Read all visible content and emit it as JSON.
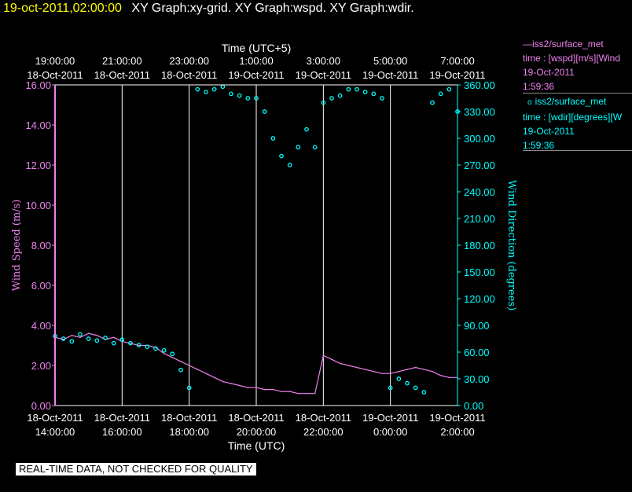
{
  "header": {
    "timestamp": "19-oct-2011,02:00:00",
    "graphs": "XY Graph:xy-grid.  XY Graph:wspd.  XY Graph:wdir."
  },
  "legend": [
    {
      "marker": "line",
      "title": "iss2/surface_met",
      "line2": "time : [wspd][m/s][Wind",
      "line3": "19-Oct-2011",
      "line4": "1:59:36",
      "color": "#ee82ee"
    },
    {
      "marker": "circle",
      "title": "iss2/surface_met",
      "line2": "time : [wdir][degrees][W",
      "line3": "19-Oct-2011",
      "line4": "1:59:36",
      "color": "#00ffff"
    }
  ],
  "notice": "REAL-TIME DATA, NOT CHECKED FOR QUALITY",
  "chart_data": {
    "type": "scatter",
    "top_axis": {
      "label": "Time (UTC+5)",
      "ticks": [
        {
          "time": "19:00:00",
          "date": "18-Oct-2011"
        },
        {
          "time": "21:00:00",
          "date": "18-Oct-2011"
        },
        {
          "time": "23:00:00",
          "date": "18-Oct-2011"
        },
        {
          "time": "1:00:00",
          "date": "19-Oct-2011"
        },
        {
          "time": "3:00:00",
          "date": "19-Oct-2011"
        },
        {
          "time": "5:00:00",
          "date": "19-Oct-2011"
        },
        {
          "time": "7:00:00",
          "date": "19-Oct-2011"
        }
      ]
    },
    "bottom_axis": {
      "label": "Time (UTC)",
      "ticks": [
        {
          "time": "14:00:00",
          "date": "18-Oct-2011"
        },
        {
          "time": "16:00:00",
          "date": "18-Oct-2011"
        },
        {
          "time": "18:00:00",
          "date": "18-Oct-2011"
        },
        {
          "time": "20:00:00",
          "date": "18-Oct-2011"
        },
        {
          "time": "22:00:00",
          "date": "18-Oct-2011"
        },
        {
          "time": "0:00:00",
          "date": "19-Oct-2011"
        },
        {
          "time": "2:00:00",
          "date": "19-Oct-2011"
        }
      ]
    },
    "xlim": [
      "2011-10-18 14:00",
      "2011-10-19 02:00"
    ],
    "left_axis": {
      "label": "Wind Speed (m/s)",
      "ylim": [
        0,
        16
      ],
      "ticks": [
        "0.00",
        "2.00",
        "4.00",
        "6.00",
        "8.00",
        "10.00",
        "12.00",
        "14.00",
        "16.00"
      ],
      "color": "#ee82ee"
    },
    "right_axis": {
      "label": "Wind Direction (degrees)",
      "ylim": [
        0,
        360
      ],
      "ticks": [
        "0.00",
        "30.00",
        "60.00",
        "90.00",
        "120.00",
        "150.00",
        "180.00",
        "210.00",
        "240.00",
        "270.00",
        "300.00",
        "330.00",
        "360.00"
      ],
      "color": "#00ffff"
    },
    "grid": "vertical",
    "series": [
      {
        "type": "line",
        "color": "#ee82ee",
        "x_hours_utc": [
          14.0,
          14.25,
          14.5,
          14.75,
          15.0,
          15.25,
          15.5,
          15.75,
          16.0,
          16.25,
          16.5,
          16.75,
          17.0,
          17.25,
          17.5,
          17.75,
          18.0,
          18.25,
          18.5,
          18.75,
          19.0,
          19.25,
          19.5,
          19.75,
          20.0,
          20.25,
          20.5,
          20.75,
          21.0,
          21.25,
          21.5,
          21.75,
          22.0,
          22.25,
          22.5,
          22.75,
          23.0,
          23.25,
          23.5,
          23.75,
          24.0,
          24.25,
          24.5,
          24.75,
          25.0,
          25.25,
          25.5,
          25.75,
          26.0
        ],
        "values": [
          3.4,
          3.3,
          3.5,
          3.4,
          3.6,
          3.5,
          3.3,
          3.4,
          3.2,
          3.1,
          3.0,
          3.0,
          2.9,
          2.6,
          2.4,
          2.2,
          2.0,
          1.8,
          1.6,
          1.4,
          1.2,
          1.1,
          1.0,
          0.9,
          0.9,
          0.8,
          0.8,
          0.7,
          0.7,
          0.6,
          0.6,
          0.6,
          2.5,
          2.3,
          2.1,
          2.0,
          1.9,
          1.8,
          1.7,
          1.6,
          1.6,
          1.7,
          1.8,
          1.9,
          1.8,
          1.7,
          1.5,
          1.4,
          1.4
        ]
      },
      {
        "type": "scatter",
        "color": "#00ffff",
        "x_hours_utc": [
          14.0,
          14.25,
          14.5,
          14.75,
          15.0,
          15.25,
          15.5,
          15.75,
          16.0,
          16.25,
          16.5,
          16.75,
          17.0,
          17.25,
          17.5,
          17.75,
          18.0,
          18.25,
          18.5,
          18.75,
          19.0,
          19.25,
          19.5,
          19.75,
          20.0,
          20.25,
          20.5,
          20.75,
          21.0,
          21.25,
          21.5,
          21.75,
          22.0,
          22.25,
          22.5,
          22.75,
          23.0,
          23.25,
          23.5,
          23.75,
          24.0,
          24.25,
          24.5,
          24.75,
          25.0,
          25.25,
          25.5,
          25.75,
          26.0
        ],
        "values": [
          78,
          75,
          72,
          80,
          75,
          73,
          76,
          70,
          74,
          70,
          68,
          66,
          64,
          62,
          58,
          40,
          20,
          355,
          352,
          355,
          358,
          350,
          348,
          345,
          345,
          330,
          300,
          280,
          270,
          290,
          310,
          290,
          340,
          345,
          348,
          355,
          355,
          352,
          350,
          345,
          20,
          30,
          25,
          20,
          15,
          340,
          350,
          355,
          330
        ]
      }
    ]
  }
}
